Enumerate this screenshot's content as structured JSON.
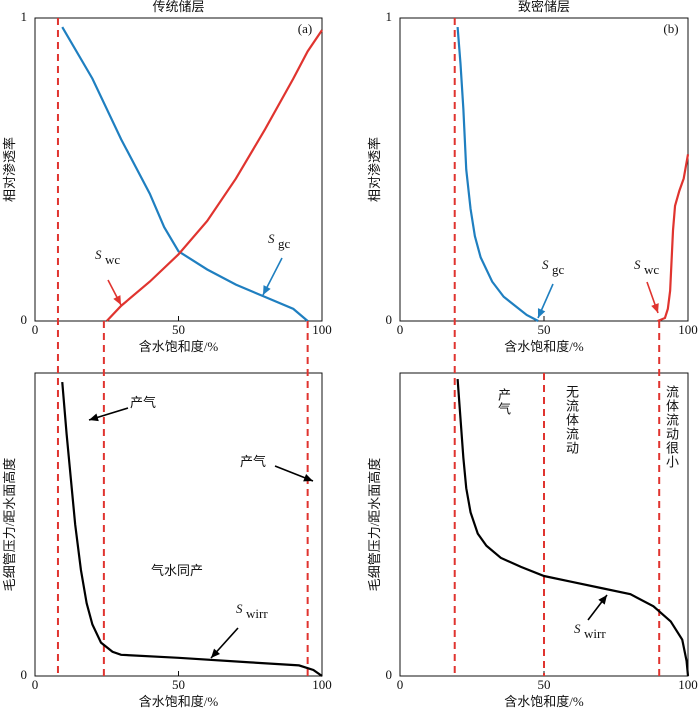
{
  "chart_data": [
    {
      "type": "line",
      "title": "传统储层",
      "panel_label": "(a)",
      "xlabel": "含水饱和度/%",
      "ylabel": "相对渗透率",
      "xlim": [
        0,
        100
      ],
      "xticks": [
        0,
        50,
        100
      ],
      "ylim": [
        0,
        1
      ],
      "yticks": [
        0,
        1
      ],
      "series": [
        {
          "color": "#1f7fc0",
          "x": [
            9.5,
            20,
            30,
            40,
            45,
            50,
            60,
            70,
            80,
            90,
            95
          ],
          "values": [
            0.97,
            0.8,
            0.6,
            0.42,
            0.31,
            0.23,
            0.17,
            0.12,
            0.08,
            0.04,
            0
          ]
        },
        {
          "color": "#e0342f",
          "x": [
            25,
            30,
            40,
            50,
            60,
            70,
            80,
            90,
            95,
            100
          ],
          "values": [
            0,
            0.05,
            0.13,
            0.22,
            0.33,
            0.47,
            0.63,
            0.8,
            0.89,
            0.96
          ]
        }
      ],
      "annotations": [
        {
          "text": "S",
          "sub": "wc",
          "color": "#e0342f"
        },
        {
          "text": "S",
          "sub": "gc",
          "color": "#1f7fc0"
        }
      ]
    },
    {
      "type": "line",
      "title": "致密储层",
      "panel_label": "(b)",
      "xlabel": "含水饱和度/%",
      "ylabel": "相对渗透率",
      "xlim": [
        0,
        100
      ],
      "xticks": [
        0,
        50,
        100
      ],
      "ylim": [
        0,
        1
      ],
      "yticks": [
        0,
        1
      ],
      "series": [
        {
          "color": "#1f7fc0",
          "x": [
            20,
            21,
            22,
            23,
            24.5,
            26,
            28,
            32,
            36,
            40,
            44,
            48
          ],
          "values": [
            0.97,
            0.85,
            0.7,
            0.5,
            0.37,
            0.28,
            0.21,
            0.13,
            0.08,
            0.05,
            0.02,
            0
          ]
        },
        {
          "color": "#e0342f",
          "x": [
            89.5,
            92,
            93,
            93.8,
            94.3,
            94.8,
            95.5,
            97,
            98.5,
            100
          ],
          "values": [
            0,
            0.01,
            0.04,
            0.1,
            0.2,
            0.3,
            0.38,
            0.43,
            0.47,
            0.55
          ]
        }
      ],
      "annotations": [
        {
          "text": "S",
          "sub": "gc",
          "color": "#1f7fc0"
        },
        {
          "text": "S",
          "sub": "wc",
          "color": "#e0342f"
        }
      ]
    },
    {
      "type": "line",
      "xlabel": "含水饱和度/%",
      "ylabel": "毛细管压力/距水面高度",
      "xlim": [
        0,
        100
      ],
      "xticks": [
        0,
        50,
        100
      ],
      "ylim": [
        0,
        1
      ],
      "yticks": [
        0
      ],
      "series": [
        {
          "color": "#000000",
          "x": [
            9.5,
            11,
            12.5,
            14,
            16,
            18,
            20,
            23,
            27,
            30,
            50,
            75,
            92,
            97,
            100
          ],
          "values": [
            0.97,
            0.8,
            0.65,
            0.5,
            0.35,
            0.24,
            0.17,
            0.11,
            0.08,
            0.07,
            0.06,
            0.045,
            0.035,
            0.02,
            0
          ]
        }
      ],
      "dashed_lines": [
        {
          "x": 8,
          "span": "both",
          "color": "#e0342f"
        },
        {
          "x": 24,
          "span": "lower",
          "color": "#e0342f"
        },
        {
          "x": 95,
          "span": "lower",
          "color": "#e0342f"
        }
      ],
      "annotations": [
        {
          "text": "产气",
          "color": "#000000"
        },
        {
          "text": "产气",
          "color": "#000000"
        },
        {
          "text": "气水同产"
        },
        {
          "text": "S",
          "sub": "wirr",
          "color": "#000000"
        }
      ]
    },
    {
      "type": "line",
      "xlabel": "含水饱和度/%",
      "ylabel": "毛细管压力/距水面高度",
      "xlim": [
        0,
        100
      ],
      "xticks": [
        0,
        50,
        100
      ],
      "ylim": [
        0,
        1
      ],
      "yticks": [
        0
      ],
      "series": [
        {
          "color": "#000000",
          "x": [
            20,
            21,
            22,
            23,
            24.5,
            27,
            30,
            35,
            42,
            50,
            60,
            70,
            80,
            88,
            94,
            98,
            99.5,
            100
          ],
          "values": [
            0.98,
            0.85,
            0.72,
            0.62,
            0.54,
            0.47,
            0.43,
            0.39,
            0.36,
            0.33,
            0.31,
            0.29,
            0.27,
            0.23,
            0.18,
            0.12,
            0.05,
            0
          ]
        }
      ],
      "dashed_lines": [
        {
          "x": 19,
          "span": "both",
          "color": "#e0342f"
        },
        {
          "x": 50,
          "span": "own",
          "color": "#e0342f"
        },
        {
          "x": 90,
          "span": "lower",
          "color": "#e0342f"
        }
      ],
      "annotations": [
        {
          "text": "产气",
          "orientation": "vertical"
        },
        {
          "text": "无流体流动",
          "orientation": "vertical"
        },
        {
          "text": "流体流动很小",
          "orientation": "vertical"
        },
        {
          "text": "S",
          "sub": "wirr",
          "color": "#000000"
        }
      ]
    }
  ]
}
